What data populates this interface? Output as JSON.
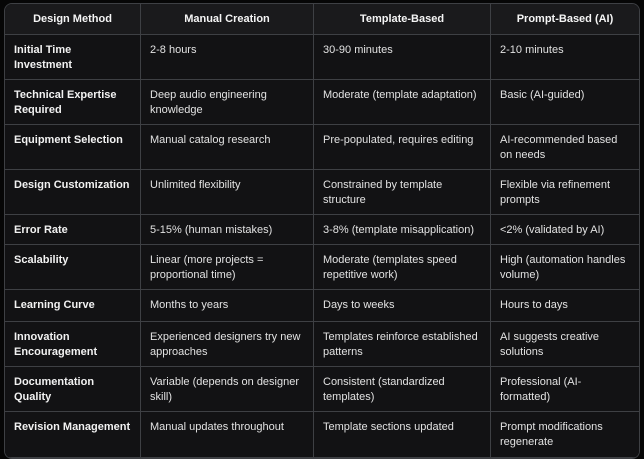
{
  "table": {
    "headers": [
      "Design Method",
      "Manual Creation",
      "Template-Based",
      "Prompt-Based (AI)"
    ],
    "rows": [
      {
        "label": "Initial Time Investment",
        "cells": [
          "2-8 hours",
          "30-90 minutes",
          "2-10 minutes"
        ]
      },
      {
        "label": "Technical Expertise Required",
        "cells": [
          "Deep audio engineering knowledge",
          "Moderate (template adaptation)",
          "Basic (AI-guided)"
        ]
      },
      {
        "label": "Equipment Selection",
        "cells": [
          "Manual catalog research",
          "Pre-populated, requires editing",
          "AI-recommended based on needs"
        ]
      },
      {
        "label": "Design Customization",
        "cells": [
          "Unlimited flexibility",
          "Constrained by template structure",
          "Flexible via refinement prompts"
        ]
      },
      {
        "label": "Error Rate",
        "cells": [
          "5-15% (human mistakes)",
          "3-8% (template misapplication)",
          "<2% (validated by AI)"
        ]
      },
      {
        "label": "Scalability",
        "cells": [
          "Linear (more projects = proportional time)",
          "Moderate (templates speed repetitive work)",
          "High (automation handles volume)"
        ]
      },
      {
        "label": "Learning Curve",
        "cells": [
          "Months to years",
          "Days to weeks",
          "Hours to days"
        ]
      },
      {
        "label": "Innovation Encouragement",
        "cells": [
          "Experienced designers try new approaches",
          "Templates reinforce established patterns",
          "AI suggests creative solutions"
        ]
      },
      {
        "label": "Documentation Quality",
        "cells": [
          "Variable (depends on designer skill)",
          "Consistent (standardized templates)",
          "Professional (AI-formatted)"
        ]
      },
      {
        "label": "Revision Management",
        "cells": [
          "Manual updates throughout",
          "Template sections updated",
          "Prompt modifications regenerate"
        ]
      }
    ]
  },
  "colors": {
    "page_background": "#060606",
    "cell_background": "#121214",
    "header_background": "#1a1a1c",
    "grid_border": "#3e4044",
    "header_text": "#f5f5f5",
    "body_text": "#e2e2e2"
  }
}
